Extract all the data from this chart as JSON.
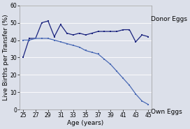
{
  "ages": [
    25,
    26,
    27,
    28,
    29,
    30,
    31,
    32,
    33,
    34,
    35,
    36,
    37,
    38,
    39,
    40,
    41,
    42,
    43,
    44,
    45
  ],
  "donor_eggs": [
    30,
    41,
    41,
    50,
    51,
    42,
    49,
    44,
    43,
    44,
    43,
    44,
    45,
    45,
    45,
    45,
    46,
    46,
    39,
    43,
    42
  ],
  "own_eggs": [
    40,
    40,
    41,
    41,
    41,
    40,
    39,
    38,
    37,
    36,
    34,
    33,
    32,
    29,
    26,
    22,
    18,
    14,
    9,
    5,
    3
  ],
  "donor_color": "#1a237e",
  "own_color": "#4a6ab5",
  "bg_color": "#dce0ea",
  "outer_bg": "#d8dce8",
  "xlabel": "Age (years)",
  "ylabel": "Live Births per Transfer (%)",
  "ylim": [
    0,
    60
  ],
  "yticks": [
    0,
    10,
    20,
    30,
    40,
    50,
    60
  ],
  "xticks": [
    25,
    27,
    29,
    31,
    33,
    35,
    37,
    39,
    41,
    43,
    45
  ],
  "donor_label": "Donor Eggs",
  "own_label": "Own Eggs",
  "label_fontsize": 6.5,
  "tick_fontsize": 5.5,
  "axis_label_fontsize": 6.5
}
